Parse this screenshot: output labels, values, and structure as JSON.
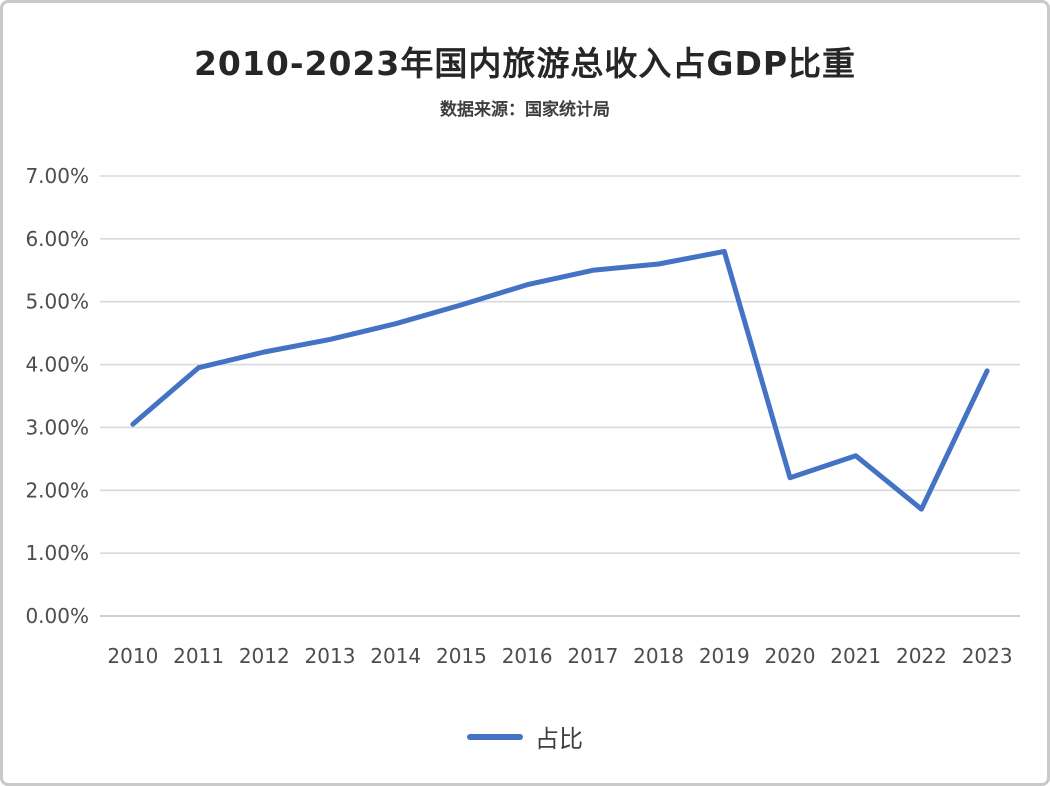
{
  "title": "2010-2023年国内旅游总收入占GDP比重",
  "subtitle": "数据来源：国家统计局",
  "legend": {
    "label": "占比"
  },
  "colors": {
    "line": "#4472C4",
    "grid": "#d9d9d9",
    "baseline": "#c0c0c0",
    "tick_text": "#4d4d4d"
  },
  "chart_data": {
    "type": "line",
    "title": "2010-2023年国内旅游总收入占GDP比重",
    "subtitle": "数据来源：国家统计局",
    "categories": [
      "2010",
      "2011",
      "2012",
      "2013",
      "2014",
      "2015",
      "2016",
      "2017",
      "2018",
      "2019",
      "2020",
      "2021",
      "2022",
      "2023"
    ],
    "series": [
      {
        "name": "占比",
        "values": [
          3.05,
          3.95,
          4.2,
          4.4,
          4.65,
          4.95,
          5.27,
          5.5,
          5.6,
          5.8,
          2.2,
          2.55,
          1.7,
          3.9
        ]
      }
    ],
    "xlabel": "",
    "ylabel": "",
    "ylim": [
      0,
      7
    ],
    "ytick_step": 1,
    "ytick_labels": [
      "0.00%",
      "1.00%",
      "2.00%",
      "3.00%",
      "4.00%",
      "5.00%",
      "6.00%",
      "7.00%"
    ],
    "grid": true,
    "legend_position": "bottom"
  }
}
